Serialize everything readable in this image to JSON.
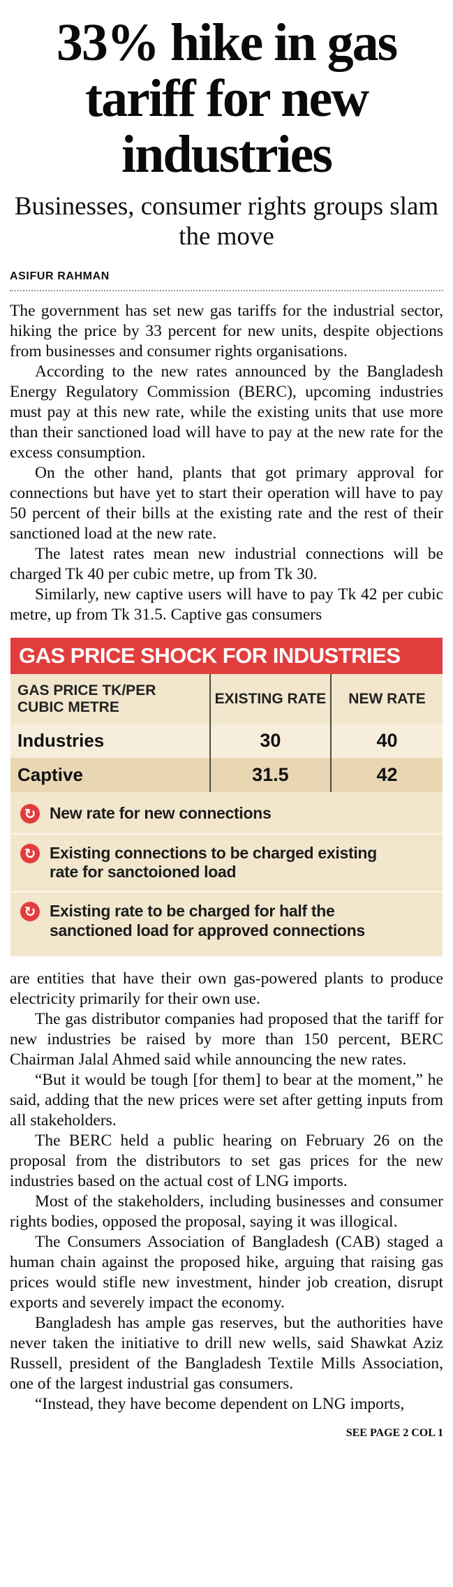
{
  "article": {
    "headline": "33% hike in gas tariff for new industries",
    "subhead": "Businesses, consumer rights groups slam the move",
    "byline": "ASIFUR RAHMAN",
    "paragraphs_before": [
      "The government has set new gas tariffs for the industrial sector, hiking the price by 33 percent for new units, despite objections from businesses and consumer rights organisations.",
      "According to the new rates announced by the Bangladesh Energy Regulatory Commission (BERC), upcoming industries must pay at this new rate, while the existing units that use more than their sanctioned load will have to pay at the new rate for the excess consumption.",
      "On the other hand, plants that got primary approval for connections but have yet to start their operation will have to pay 50 percent of their bills at the existing rate and the rest of their sanctioned load at the new rate.",
      "The latest rates mean new industrial connections will be charged Tk 40 per cubic metre, up from Tk 30.",
      "Similarly, new captive users will have to pay Tk 42 per cubic metre, up from Tk 31.5. Captive gas consumers"
    ],
    "paragraphs_after": [
      "are entities that have their own gas-powered plants to produce electricity primarily for their own use.",
      "The gas distributor companies had proposed that the tariff for new industries be raised by more than 150 percent, BERC Chairman Jalal Ahmed said while announcing the new rates.",
      "“But it would be tough [for them] to bear at the moment,” he said, adding that the new prices were set after getting inputs from all stakeholders.",
      "The BERC held a public hearing on February 26 on the proposal from the distributors to set gas prices for the new industries based on the actual cost of LNG imports.",
      "Most of the stakeholders, including businesses and consumer rights bodies, opposed the proposal, saying it was illogical.",
      "The Consumers Association of Bangladesh (CAB) staged a human chain against the proposed hike, arguing that raising gas prices would stifle new investment, hinder job creation, disrupt exports and severely impact the economy.",
      "Bangladesh has ample gas reserves, but the authorities have never taken the initiative to drill new wells, said Shawkat Aziz Russell, president of the Bangladesh Textile Mills Association, one of the largest industrial gas consumers.",
      "“Instead, they have become dependent on LNG imports,"
    ],
    "continuation": "SEE PAGE 2 COL 1"
  },
  "infographic": {
    "title": "GAS PRICE SHOCK FOR INDUSTRIES",
    "table": {
      "headers": [
        "GAS PRICE TK/PER CUBIC METRE",
        "EXISTING RATE",
        "NEW RATE"
      ],
      "rows": [
        {
          "label": "Industries",
          "existing": "30",
          "new": "40"
        },
        {
          "label": "Captive",
          "existing": "31.5",
          "new": "42"
        }
      ]
    },
    "bullet_icon": "↻",
    "bullets": [
      "New rate for new connections",
      "Existing connections to be charged existing rate for sanctoioned load",
      "Existing rate to be charged for half the sanctioned load for approved connections"
    ],
    "colors": {
      "banner_red": "#e23d3d",
      "panel_bg": "#f2e6cd",
      "row_light": "#f6edda",
      "row_dark": "#e9d7b4"
    }
  }
}
